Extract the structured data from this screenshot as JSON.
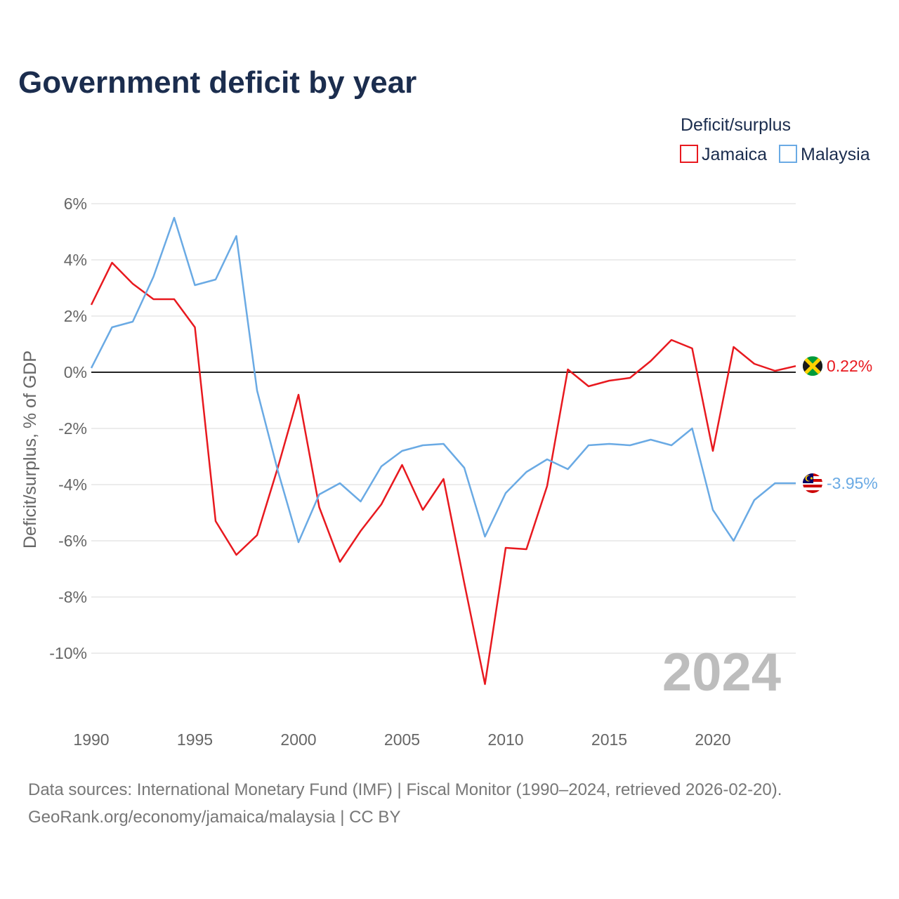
{
  "chart_data": {
    "type": "line",
    "title": "Government deficit by year",
    "legend_title": "Deficit/surplus",
    "legend_position": "top-right",
    "ylabel": "Deficit/surplus, % of GDP",
    "xlabel": "",
    "xlim": [
      1990,
      2024
    ],
    "ylim": [
      -12,
      6
    ],
    "x_ticks": [
      1990,
      1995,
      2000,
      2005,
      2010,
      2015,
      2020
    ],
    "y_ticks": [
      6,
      4,
      2,
      0,
      -2,
      -4,
      -6,
      -8,
      -10
    ],
    "y_tick_labels": [
      "6%",
      "4%",
      "2%",
      "0%",
      "-2%",
      "-4%",
      "-6%",
      "-8%",
      "-10%"
    ],
    "year_label": "2024",
    "x": [
      1990,
      1991,
      1992,
      1993,
      1994,
      1995,
      1996,
      1997,
      1998,
      1999,
      2000,
      2001,
      2002,
      2003,
      2004,
      2005,
      2006,
      2007,
      2008,
      2009,
      2010,
      2011,
      2012,
      2013,
      2014,
      2015,
      2016,
      2017,
      2018,
      2019,
      2020,
      2021,
      2022,
      2023,
      2024
    ],
    "series": [
      {
        "name": "Jamaica",
        "color": "#e8191f",
        "end_label": "0.22%",
        "flag_icon": "jamaica-flag-icon",
        "values": [
          2.4,
          3.9,
          3.15,
          2.6,
          2.6,
          1.6,
          -5.3,
          -6.5,
          -5.8,
          -3.4,
          -0.8,
          -4.8,
          -6.75,
          -5.65,
          -4.7,
          -3.3,
          -4.9,
          -3.8,
          -7.5,
          -11.1,
          -6.25,
          -6.3,
          -4.05,
          0.1,
          -0.5,
          -0.3,
          -0.2,
          0.4,
          1.15,
          0.85,
          -2.8,
          0.9,
          0.3,
          0.05,
          0.22
        ]
      },
      {
        "name": "Malaysia",
        "color": "#6aaae4",
        "end_label": "-3.95%",
        "flag_icon": "malaysia-flag-icon",
        "values": [
          0.15,
          1.6,
          1.8,
          3.4,
          5.5,
          3.1,
          3.3,
          4.85,
          -0.65,
          -3.5,
          -6.05,
          -4.35,
          -3.95,
          -4.6,
          -3.35,
          -2.8,
          -2.6,
          -2.55,
          -3.4,
          -5.85,
          -4.3,
          -3.55,
          -3.1,
          -3.45,
          -2.6,
          -2.55,
          -2.6,
          -2.4,
          -2.6,
          -2.0,
          -4.9,
          -6.0,
          -4.55,
          -3.95,
          -3.95
        ]
      }
    ]
  },
  "footer": {
    "source_line": "Data sources: International Monetary Fund (IMF) | Fiscal Monitor (1990–2024, retrieved 2026-02-20).",
    "credit_line": "GeoRank.org/economy/jamaica/malaysia | CC BY"
  }
}
